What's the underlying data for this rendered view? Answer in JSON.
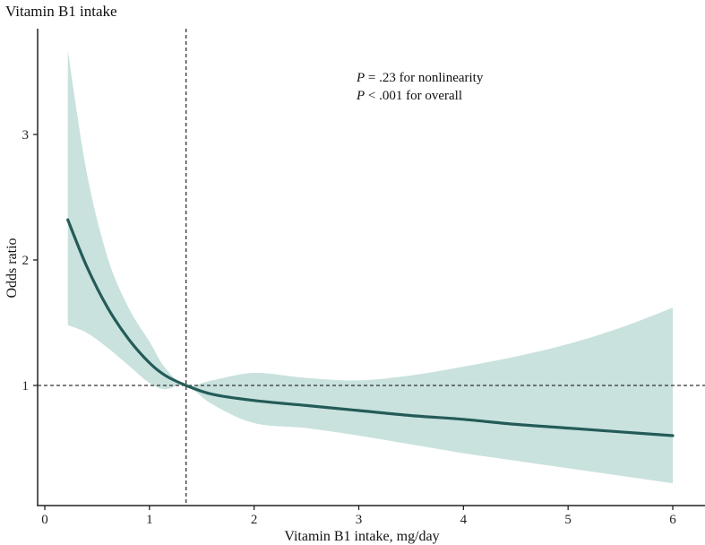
{
  "chart_data": {
    "type": "line",
    "title": "Vitamin B1 intake",
    "xlabel": "Vitamin B1 intake, mg/day",
    "ylabel": "Odds ratio",
    "xlim": [
      -0.1,
      6.5
    ],
    "ylim": [
      0.05,
      3.85
    ],
    "x_ticks": [
      0,
      1,
      2,
      3,
      4,
      5,
      6
    ],
    "y_ticks": [
      1,
      2,
      3
    ],
    "grid": false,
    "reference_lines": {
      "x": 1.35,
      "y": 1
    },
    "annotations": [
      {
        "italic": "P",
        "text": " = .23 for nonlinearity"
      },
      {
        "italic": "P",
        "text": " < .001 for overall"
      }
    ],
    "series": [
      {
        "x": [
          0.22,
          0.4,
          0.6,
          0.8,
          1.0,
          1.15,
          1.35,
          1.6,
          2.0,
          2.5,
          3.0,
          3.5,
          4.0,
          4.5,
          5.0,
          5.5,
          6.0
        ],
        "y": [
          2.32,
          1.95,
          1.62,
          1.37,
          1.18,
          1.08,
          1.0,
          0.93,
          0.88,
          0.84,
          0.8,
          0.76,
          0.73,
          0.69,
          0.66,
          0.63,
          0.6
        ],
        "lower": [
          1.48,
          1.42,
          1.3,
          1.16,
          1.02,
          0.97,
          1.0,
          0.85,
          0.7,
          0.66,
          0.6,
          0.53,
          0.46,
          0.4,
          0.34,
          0.28,
          0.22
        ],
        "upper": [
          3.67,
          2.7,
          2.02,
          1.62,
          1.35,
          1.14,
          1.0,
          1.04,
          1.1,
          1.06,
          1.04,
          1.08,
          1.15,
          1.23,
          1.33,
          1.46,
          1.62
        ]
      }
    ],
    "colors": {
      "line": "#245b58",
      "band": "#c9e2dd",
      "axis": "#222222",
      "reference": "#333333"
    }
  }
}
